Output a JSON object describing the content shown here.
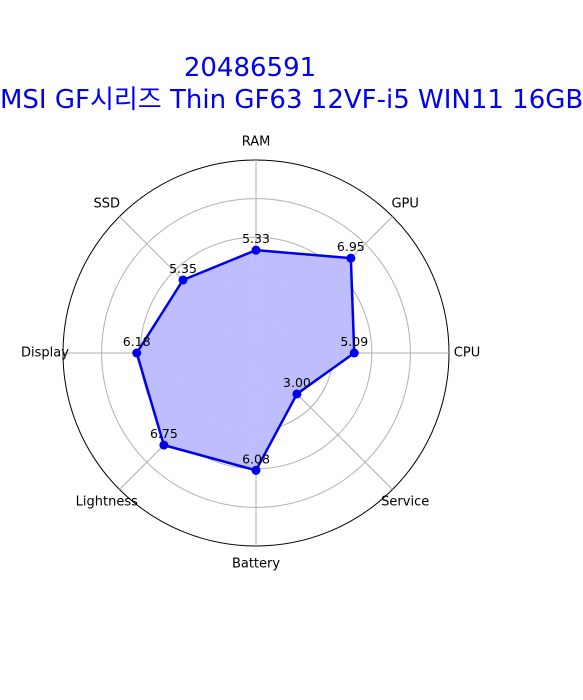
{
  "chart_data": {
    "type": "radar",
    "title_line1": "20486591",
    "title_line2": "MSI GF시리즈 Thin GF63 12VF-i5 WIN11 16GB",
    "axes": [
      "RAM",
      "GPU",
      "CPU",
      "Service",
      "Battery",
      "Lightness",
      "Display",
      "SSD"
    ],
    "values": [
      5.33,
      6.95,
      5.09,
      3.0,
      6.08,
      6.75,
      6.18,
      5.35
    ],
    "value_labels": [
      "5.33",
      "6.95",
      "5.09",
      "3.00",
      "6.08",
      "6.75",
      "6.18",
      "5.35"
    ],
    "rmax": 10,
    "grid_rings": [
      2,
      4,
      6,
      8
    ],
    "grid": true,
    "colors": {
      "line": "#0000ee",
      "fill": "#bbbbff",
      "title": "#0000ee",
      "grid": "#b0b0b0"
    }
  }
}
